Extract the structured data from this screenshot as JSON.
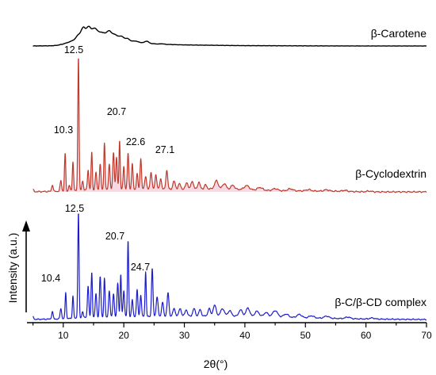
{
  "chart_data": {
    "type": "line",
    "xlabel": "2θ(°)",
    "ylabel": "Intensity (a.u.)",
    "xlim": [
      4,
      70
    ],
    "x_ticks": [
      10,
      20,
      30,
      40,
      50,
      60,
      70
    ],
    "grid": false,
    "series": [
      {
        "name": "β-Carotene",
        "color": "#000000",
        "shading": null,
        "base": 0.0,
        "peaks": [],
        "baseline": [
          [
            4,
            0
          ],
          [
            8,
            0.3
          ],
          [
            9,
            1
          ],
          [
            10,
            3
          ],
          [
            11,
            6
          ],
          [
            12,
            10
          ],
          [
            13,
            16
          ],
          [
            14,
            22
          ],
          [
            15,
            23
          ],
          [
            16,
            21
          ],
          [
            17,
            19
          ],
          [
            18,
            17
          ],
          [
            19,
            14
          ],
          [
            20,
            11
          ],
          [
            21,
            8
          ],
          [
            22,
            6
          ],
          [
            24,
            4
          ],
          [
            26,
            2.6
          ],
          [
            30,
            1.6
          ],
          [
            35,
            1
          ],
          [
            40,
            0.5
          ],
          [
            50,
            0.2
          ],
          [
            60,
            0
          ],
          [
            70,
            0
          ]
        ],
        "features": [
          [
            12.5,
            4,
            0.35
          ],
          [
            13.3,
            10,
            0.3
          ],
          [
            14.2,
            7,
            0.3
          ],
          [
            15.2,
            4,
            0.3
          ],
          [
            17.6,
            5,
            0.3
          ],
          [
            18.5,
            2,
            0.3
          ],
          [
            19.6,
            2.5,
            0.3
          ],
          [
            20.6,
            2,
            0.3
          ],
          [
            22.0,
            1.2,
            0.3
          ],
          [
            23.8,
            3,
            0.3
          ],
          [
            26.3,
            0.8,
            0.3
          ]
        ]
      },
      {
        "name": "β-Cyclodextrin",
        "color": "#c0392b",
        "shading": "#f3c9d9",
        "base": 0.0,
        "peaks": [
          "10.3",
          "12.5",
          "20.7",
          "22.6",
          "27.1"
        ],
        "baseline": [
          [
            4,
            0
          ],
          [
            10,
            0.5
          ],
          [
            15,
            1.5
          ],
          [
            20,
            1.7
          ],
          [
            30,
            2
          ],
          [
            35,
            2.3
          ],
          [
            40,
            1.7
          ],
          [
            45,
            0.9
          ],
          [
            55,
            0.5
          ],
          [
            60,
            0
          ],
          [
            70,
            0
          ]
        ],
        "features": [
          [
            5.0,
            1.5,
            0.12
          ],
          [
            8.2,
            5,
            0.12
          ],
          [
            9.6,
            8,
            0.12
          ],
          [
            10.3,
            28,
            0.1
          ],
          [
            11.0,
            4,
            0.12
          ],
          [
            11.6,
            22,
            0.1
          ],
          [
            12.5,
            100,
            0.1
          ],
          [
            13.2,
            7,
            0.12
          ],
          [
            14.1,
            15,
            0.12
          ],
          [
            14.7,
            28,
            0.1
          ],
          [
            15.4,
            13,
            0.12
          ],
          [
            16.1,
            19,
            0.12
          ],
          [
            16.8,
            35,
            0.1
          ],
          [
            17.6,
            19,
            0.12
          ],
          [
            18.3,
            28,
            0.12
          ],
          [
            18.8,
            24,
            0.12
          ],
          [
            19.3,
            37,
            0.1
          ],
          [
            20.0,
            17,
            0.12
          ],
          [
            20.7,
            27,
            0.12
          ],
          [
            21.4,
            19,
            0.12
          ],
          [
            22.2,
            12,
            0.12
          ],
          [
            22.8,
            23,
            0.12
          ],
          [
            23.6,
            10,
            0.15
          ],
          [
            24.5,
            13,
            0.15
          ],
          [
            25.3,
            11,
            0.15
          ],
          [
            26.1,
            8,
            0.15
          ],
          [
            27.1,
            14,
            0.15
          ],
          [
            28.3,
            6,
            0.2
          ],
          [
            29.2,
            4,
            0.2
          ],
          [
            30.4,
            5,
            0.2
          ],
          [
            31.3,
            6,
            0.2
          ],
          [
            32.4,
            5,
            0.2
          ],
          [
            33.5,
            3,
            0.2
          ],
          [
            35.3,
            6,
            0.3
          ],
          [
            36.6,
            4,
            0.3
          ],
          [
            38.0,
            3,
            0.3
          ],
          [
            40.3,
            3,
            0.4
          ],
          [
            42.5,
            2,
            0.4
          ],
          [
            45.0,
            1.5,
            0.4
          ],
          [
            47.5,
            1.5,
            0.4
          ],
          [
            50.5,
            1,
            0.4
          ],
          [
            53.5,
            1,
            0.4
          ],
          [
            56.5,
            0.8,
            0.4
          ],
          [
            60.5,
            0.6,
            0.4
          ]
        ]
      },
      {
        "name": "β-C/β-CD complex",
        "color": "#1c1ccc",
        "shading": null,
        "base": 0.0,
        "peaks": [
          "10.4",
          "12.5",
          "20.7",
          "24.7"
        ],
        "baseline": [
          [
            4,
            0
          ],
          [
            10,
            0.6
          ],
          [
            15,
            2
          ],
          [
            20,
            2.5
          ],
          [
            25,
            3
          ],
          [
            30,
            3.2
          ],
          [
            35,
            3.4
          ],
          [
            40,
            3
          ],
          [
            45,
            2.4
          ],
          [
            50,
            1.6
          ],
          [
            55,
            1
          ],
          [
            60,
            0.5
          ],
          [
            65,
            0.2
          ],
          [
            70,
            0
          ]
        ],
        "features": [
          [
            5.0,
            2.5,
            0.12
          ],
          [
            8.2,
            7,
            0.12
          ],
          [
            9.6,
            10,
            0.12
          ],
          [
            10.4,
            25,
            0.1
          ],
          [
            11.6,
            21,
            0.1
          ],
          [
            12.5,
            100,
            0.1
          ],
          [
            13.2,
            6,
            0.12
          ],
          [
            14.1,
            30,
            0.12
          ],
          [
            14.7,
            43,
            0.1
          ],
          [
            15.4,
            22,
            0.12
          ],
          [
            16.1,
            38,
            0.12
          ],
          [
            16.8,
            37,
            0.1
          ],
          [
            17.6,
            25,
            0.12
          ],
          [
            18.3,
            22,
            0.12
          ],
          [
            19.0,
            32,
            0.12
          ],
          [
            19.5,
            40,
            0.1
          ],
          [
            20.0,
            25,
            0.12
          ],
          [
            20.7,
            72,
            0.1
          ],
          [
            21.4,
            16,
            0.12
          ],
          [
            22.2,
            25,
            0.12
          ],
          [
            22.8,
            20,
            0.12
          ],
          [
            23.6,
            42,
            0.1
          ],
          [
            24.7,
            45,
            0.12
          ],
          [
            25.5,
            18,
            0.15
          ],
          [
            26.4,
            13,
            0.15
          ],
          [
            27.3,
            22,
            0.15
          ],
          [
            28.3,
            7,
            0.2
          ],
          [
            29.3,
            7,
            0.2
          ],
          [
            30.3,
            6,
            0.2
          ],
          [
            31.6,
            7,
            0.2
          ],
          [
            32.6,
            6,
            0.2
          ],
          [
            34.1,
            7,
            0.2
          ],
          [
            35.0,
            10,
            0.25
          ],
          [
            36.3,
            7,
            0.3
          ],
          [
            37.5,
            5,
            0.3
          ],
          [
            39.3,
            6,
            0.3
          ],
          [
            40.5,
            8,
            0.3
          ],
          [
            42.0,
            5,
            0.35
          ],
          [
            43.5,
            4,
            0.35
          ],
          [
            45.0,
            6,
            0.4
          ],
          [
            46.8,
            3,
            0.4
          ],
          [
            49.0,
            3,
            0.4
          ],
          [
            51.0,
            2,
            0.4
          ],
          [
            53.5,
            2,
            0.4
          ],
          [
            57.0,
            1.5,
            0.4
          ],
          [
            61.0,
            1,
            0.4
          ]
        ]
      }
    ]
  }
}
